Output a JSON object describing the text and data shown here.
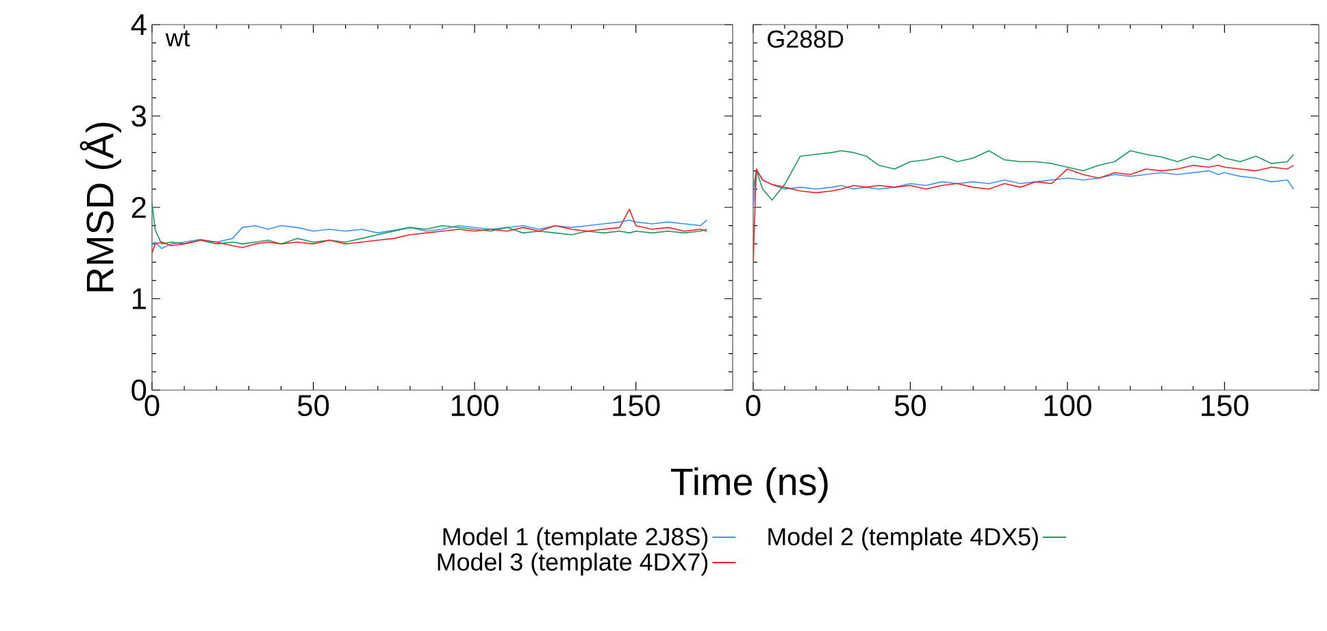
{
  "chart_data": [
    {
      "type": "line",
      "title": "wt",
      "xlabel": "Time (ns)",
      "ylabel": "RMSD (Å)",
      "legend": "bottom",
      "x": [
        0,
        1,
        3,
        6,
        10,
        15,
        20,
        25,
        28,
        32,
        36,
        40,
        45,
        50,
        55,
        60,
        65,
        70,
        75,
        80,
        85,
        90,
        95,
        100,
        105,
        110,
        115,
        120,
        125,
        130,
        135,
        140,
        145,
        148,
        150,
        155,
        160,
        165,
        170,
        172
      ],
      "series": [
        {
          "name": "Model 1 (template 2J8S)",
          "color": "#3d94f2",
          "values": [
            1.6,
            1.62,
            1.55,
            1.6,
            1.62,
            1.65,
            1.62,
            1.66,
            1.78,
            1.8,
            1.76,
            1.8,
            1.78,
            1.74,
            1.76,
            1.74,
            1.76,
            1.72,
            1.75,
            1.78,
            1.74,
            1.76,
            1.8,
            1.78,
            1.76,
            1.78,
            1.8,
            1.76,
            1.8,
            1.78,
            1.8,
            1.82,
            1.84,
            1.86,
            1.84,
            1.82,
            1.84,
            1.82,
            1.8,
            1.86
          ]
        },
        {
          "name": "Model 2 (template 4DX5)",
          "color": "#1a9a5c",
          "values": [
            2.05,
            1.75,
            1.6,
            1.62,
            1.6,
            1.64,
            1.6,
            1.62,
            1.6,
            1.62,
            1.64,
            1.6,
            1.66,
            1.62,
            1.64,
            1.62,
            1.66,
            1.7,
            1.74,
            1.78,
            1.76,
            1.8,
            1.78,
            1.76,
            1.74,
            1.78,
            1.72,
            1.74,
            1.72,
            1.7,
            1.74,
            1.72,
            1.74,
            1.72,
            1.74,
            1.72,
            1.74,
            1.72,
            1.74,
            1.76
          ]
        },
        {
          "name": "Model 3 (template 4DX7)",
          "color": "#ee2222",
          "values": [
            1.5,
            1.6,
            1.62,
            1.58,
            1.6,
            1.64,
            1.62,
            1.58,
            1.56,
            1.6,
            1.62,
            1.6,
            1.62,
            1.6,
            1.64,
            1.6,
            1.62,
            1.64,
            1.66,
            1.7,
            1.72,
            1.74,
            1.76,
            1.74,
            1.76,
            1.74,
            1.78,
            1.74,
            1.8,
            1.76,
            1.74,
            1.76,
            1.78,
            1.98,
            1.8,
            1.76,
            1.78,
            1.74,
            1.76,
            1.74
          ]
        }
      ],
      "xlim": [
        0,
        180
      ],
      "ylim": [
        0,
        4
      ],
      "xticks": [
        0,
        50,
        100,
        150
      ],
      "yticks": [
        0,
        1,
        2,
        3,
        4
      ]
    },
    {
      "type": "line",
      "title": "G288D",
      "tick_labels": "x",
      "x": [
        0,
        1,
        3,
        6,
        10,
        15,
        20,
        25,
        28,
        32,
        36,
        40,
        45,
        50,
        55,
        60,
        65,
        70,
        75,
        80,
        85,
        90,
        95,
        100,
        105,
        110,
        115,
        120,
        125,
        130,
        135,
        140,
        145,
        148,
        150,
        155,
        160,
        165,
        170,
        172
      ],
      "series": [
        {
          "color": "#3d94f2",
          "values": [
            2.0,
            2.4,
            2.3,
            2.25,
            2.2,
            2.22,
            2.2,
            2.22,
            2.24,
            2.2,
            2.22,
            2.2,
            2.22,
            2.26,
            2.24,
            2.28,
            2.26,
            2.28,
            2.26,
            2.3,
            2.26,
            2.28,
            2.3,
            2.32,
            2.3,
            2.32,
            2.36,
            2.34,
            2.36,
            2.38,
            2.36,
            2.38,
            2.4,
            2.36,
            2.38,
            2.34,
            2.32,
            2.28,
            2.3,
            2.2
          ]
        },
        {
          "color": "#1a9a5c",
          "values": [
            2.2,
            2.4,
            2.2,
            2.08,
            2.25,
            2.56,
            2.58,
            2.6,
            2.62,
            2.6,
            2.56,
            2.46,
            2.42,
            2.5,
            2.52,
            2.56,
            2.5,
            2.54,
            2.62,
            2.52,
            2.5,
            2.5,
            2.48,
            2.44,
            2.4,
            2.46,
            2.5,
            2.62,
            2.58,
            2.55,
            2.5,
            2.56,
            2.52,
            2.58,
            2.54,
            2.5,
            2.56,
            2.48,
            2.5,
            2.58
          ]
        },
        {
          "color": "#ee2222",
          "values": [
            1.4,
            2.42,
            2.3,
            2.25,
            2.22,
            2.18,
            2.16,
            2.18,
            2.2,
            2.24,
            2.22,
            2.24,
            2.22,
            2.24,
            2.2,
            2.24,
            2.26,
            2.22,
            2.2,
            2.26,
            2.22,
            2.28,
            2.26,
            2.42,
            2.36,
            2.32,
            2.38,
            2.36,
            2.42,
            2.4,
            2.42,
            2.46,
            2.44,
            2.46,
            2.44,
            2.42,
            2.4,
            2.44,
            2.42,
            2.46
          ]
        }
      ],
      "xlim": [
        0,
        180
      ],
      "ylim": [
        0,
        4
      ],
      "xticks": [
        0,
        50,
        100,
        150
      ],
      "yticks": [
        0,
        1,
        2,
        3,
        4
      ]
    }
  ]
}
